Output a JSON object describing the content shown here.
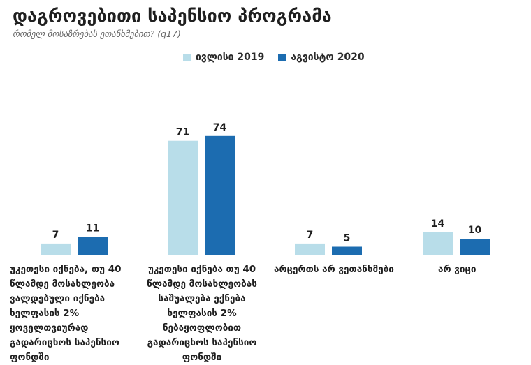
{
  "chart_data": {
    "type": "bar",
    "title": "დაგროვებითი საპენსიო პროგრამა",
    "subtitle": "რომელ მოსაზრებას ეთანხმებით? (q17)",
    "categories": [
      "უკეთესი იქნება, თუ 40 წლამდე მოსახლეობა ვალდებული იქნება ხელფასის 2% ყოველთვიურად გადარიცხოს საპენსიო ფონდში",
      "უკეთესი იქნება თუ 40 წლამდე მოსახლეობას საშუალება ექნება ხელფასის 2% ნებაყოფლობით გადარიცხოს საპენსიო ფონდში",
      "არცერთს არ ვეთანხმები",
      "არ ვიცი"
    ],
    "series": [
      {
        "name": "ივლისი 2019",
        "color": "#b8dde9",
        "values": [
          7,
          71,
          7,
          14
        ]
      },
      {
        "name": "აგვისტო 2020",
        "color": "#1c6cb0",
        "values": [
          11,
          74,
          5,
          10
        ]
      }
    ],
    "xlabel": "",
    "ylabel": "",
    "ylim": [
      0,
      80
    ],
    "grid": false,
    "legend": "top-center"
  }
}
